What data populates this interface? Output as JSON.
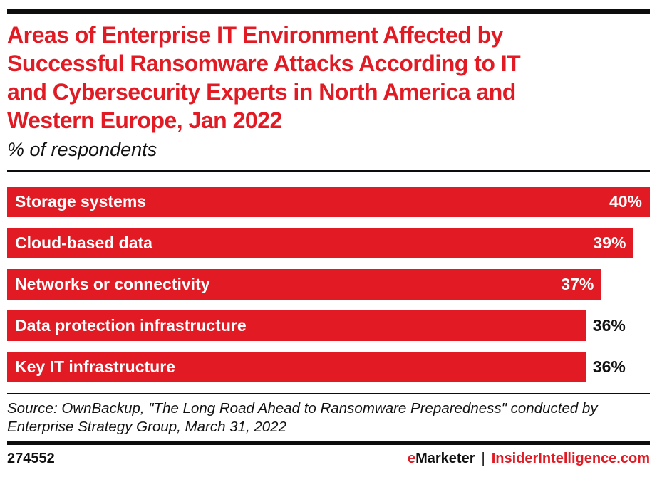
{
  "page": {
    "background": "#ffffff",
    "accent_red": "#e11a23",
    "text_black": "#111111"
  },
  "header": {
    "title_lines": [
      "Areas of Enterprise IT Environment Affected by",
      "Successful Ransomware Attacks According to IT",
      "and Cybersecurity Experts in North America and",
      "Western Europe, Jan 2022"
    ],
    "subtitle": "% of respondents"
  },
  "chart_data": {
    "type": "bar",
    "orientation": "horizontal",
    "title": "Areas of Enterprise IT Environment Affected by Successful Ransomware Attacks According to IT and Cybersecurity Experts in North America and Western Europe, Jan 2022",
    "subtitle": "% of respondents",
    "categories": [
      "Storage systems",
      "Cloud-based data",
      "Networks or connectivity",
      "Data protection infrastructure",
      "Key IT infrastructure"
    ],
    "values": [
      40,
      39,
      37,
      36,
      36
    ],
    "value_suffix": "%",
    "xlim": [
      0,
      40
    ],
    "bar_color": "#e11a23",
    "grid": false,
    "legend": false,
    "value_label_inside": [
      true,
      true,
      true,
      false,
      false
    ]
  },
  "source": {
    "lines": [
      "Source: OwnBackup, \"The Long Road Ahead to Ransomware Preparedness\" conducted by",
      "Enterprise Strategy Group, March 31, 2022"
    ]
  },
  "footer": {
    "chart_id": "274552",
    "brand_e": "e",
    "brand_rest": "Marketer",
    "separator": "|",
    "site": "InsiderIntelligence.com"
  }
}
